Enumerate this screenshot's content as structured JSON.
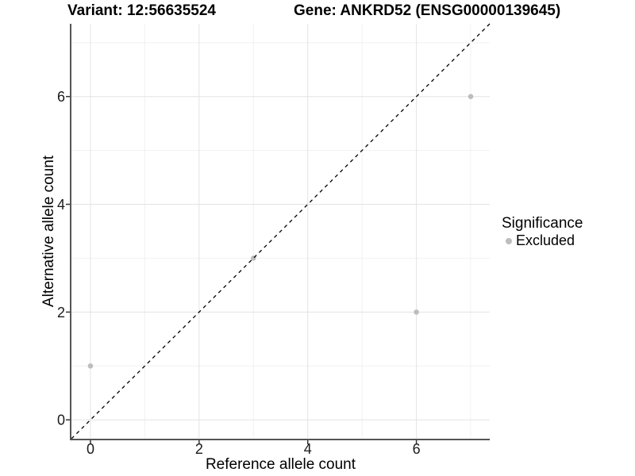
{
  "header": {
    "variant_title": "Variant: 12:56635524",
    "gene_title": "Gene: ANKRD52 (ENSG00000139645)"
  },
  "chart_data": {
    "type": "scatter",
    "xlabel": "Reference allele count",
    "ylabel": "Alternative allele count",
    "xlim": [
      -0.35,
      7.35
    ],
    "ylim": [
      -0.35,
      7.35
    ],
    "x_ticks": [
      0,
      2,
      4,
      6
    ],
    "y_ticks": [
      0,
      2,
      4,
      6
    ],
    "x_tick_labels": [
      "0",
      "2",
      "4",
      "6"
    ],
    "y_tick_labels": [
      "0",
      "2",
      "4",
      "6"
    ],
    "minor_gridlines": [
      1,
      3,
      5,
      7
    ],
    "grid": "major+minor",
    "legend_position": "right",
    "series": [
      {
        "name": "Excluded",
        "color": "#bdbdbd",
        "points": [
          {
            "x": 0,
            "y": 1
          },
          {
            "x": 3,
            "y": 3
          },
          {
            "x": 6,
            "y": 2
          },
          {
            "x": 7,
            "y": 6
          }
        ]
      }
    ],
    "reference_line": {
      "type": "identity",
      "style": "dashed",
      "color": "#000000"
    },
    "legend": {
      "title": "Significance",
      "items": [
        {
          "label": "Excluded",
          "color": "#bdbdbd"
        }
      ]
    }
  },
  "colors": {
    "background": "#ffffff",
    "grid_major": "#e3e3e3",
    "grid_minor": "#f1f1f1",
    "axis_line": "#555555",
    "tick_mark": "#333333",
    "tick_text": "#1a1a1a",
    "axis_title_text": "#000000"
  }
}
